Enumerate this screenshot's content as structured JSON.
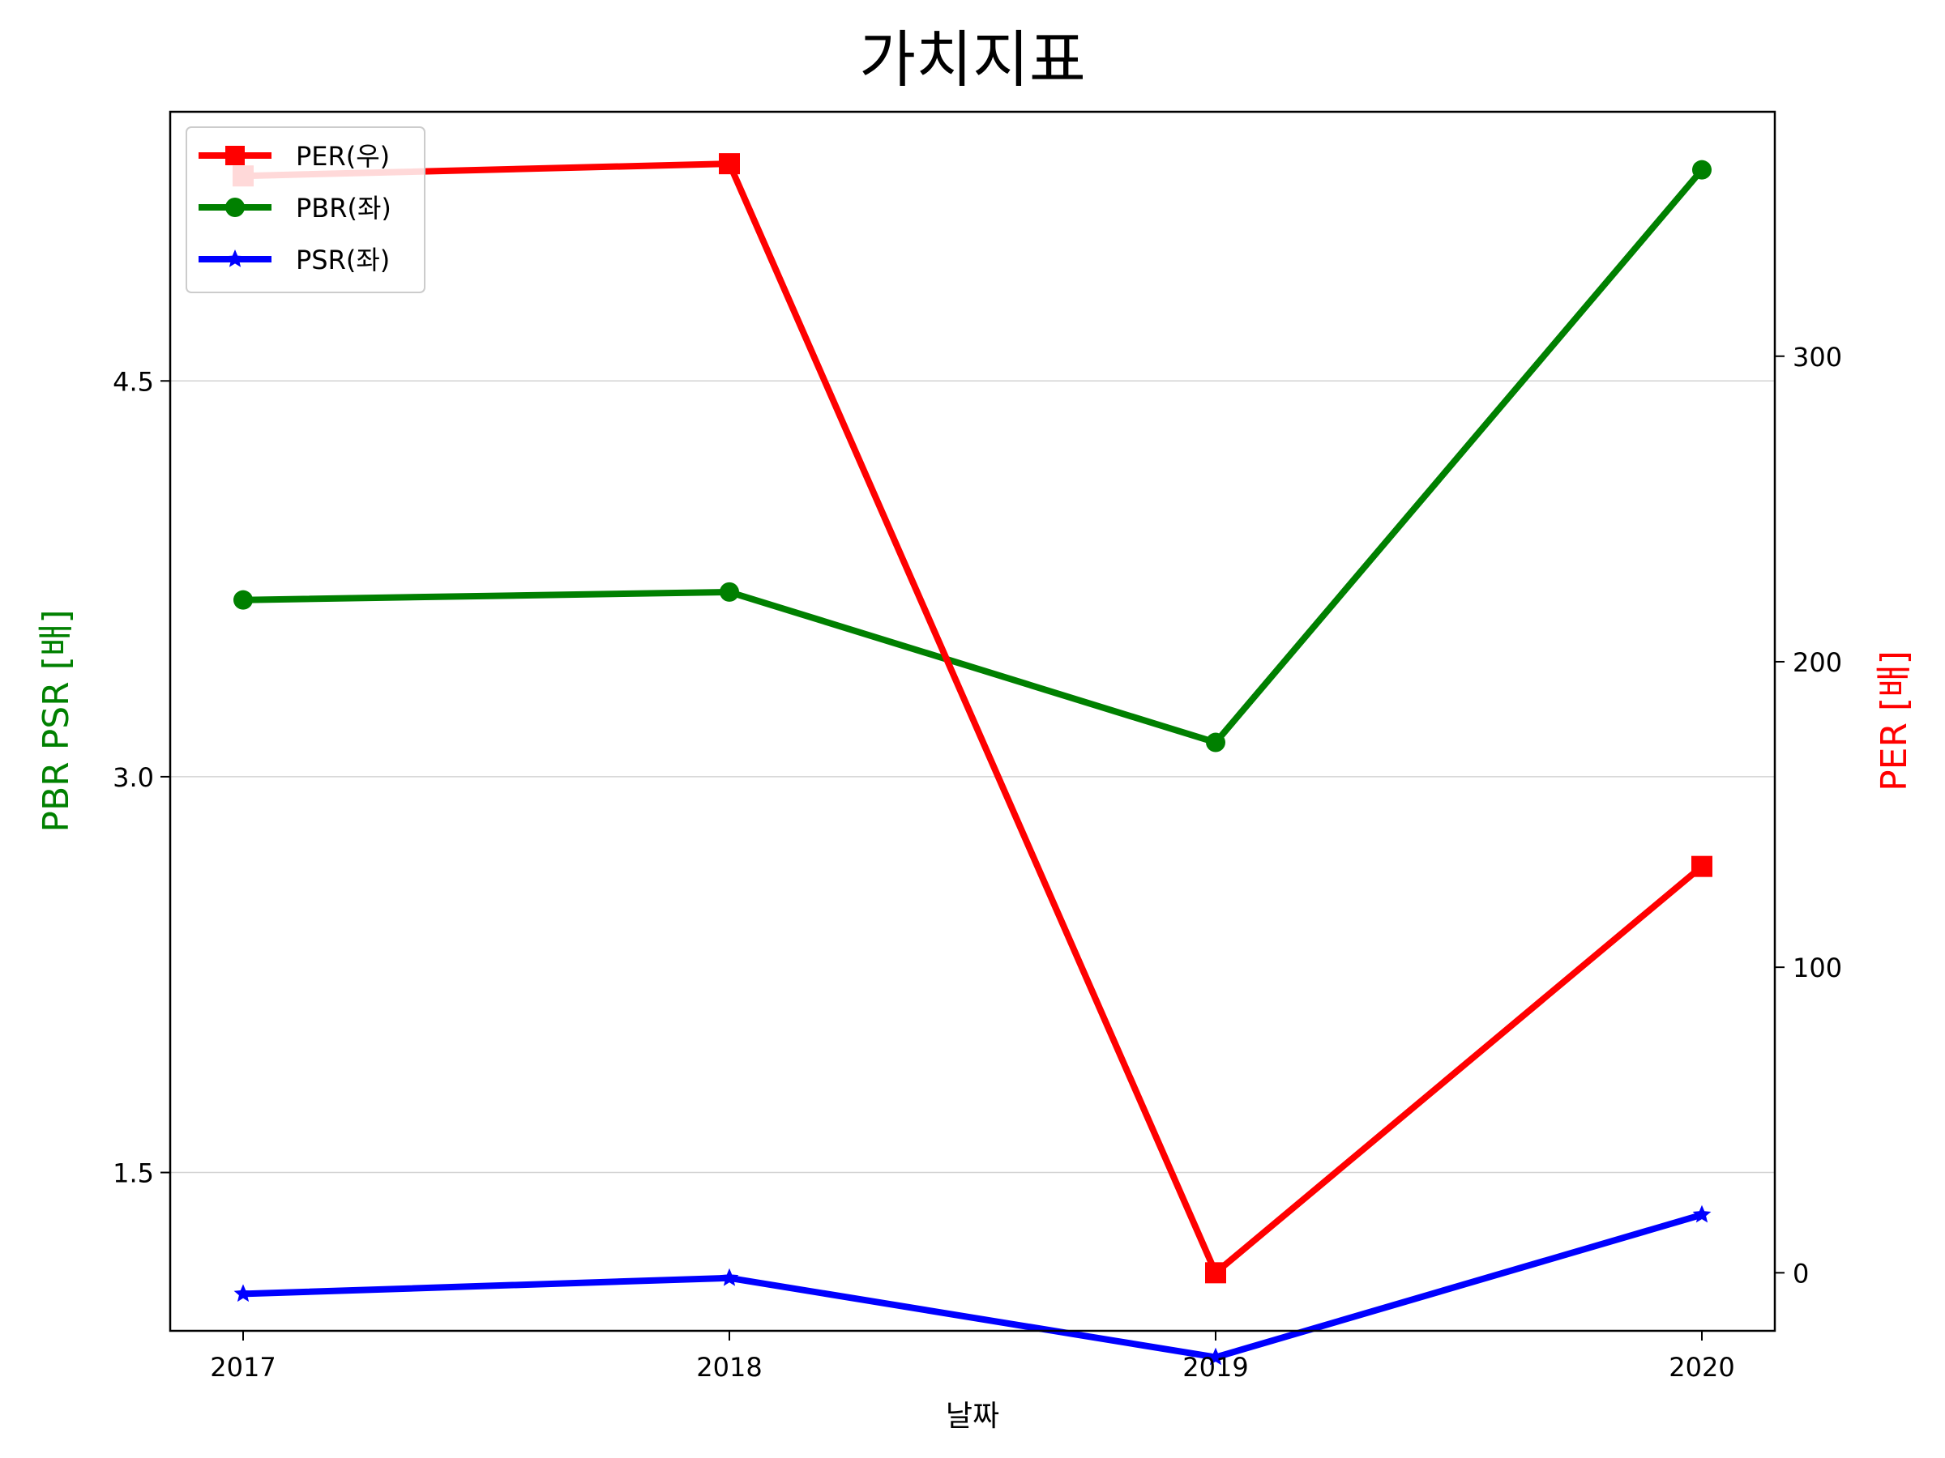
{
  "chart_data": {
    "type": "line",
    "title": "가치지표",
    "xlabel": "날짜",
    "ylabel_left": "PBR PSR [배]",
    "ylabel_right": "PER [배]",
    "colors": {
      "left_label": "#008000",
      "right_label": "#ff0000",
      "grid": "#d3d3d3",
      "axis": "#000000"
    },
    "categories": [
      "2017",
      "2018",
      "2019",
      "2020"
    ],
    "y_left": {
      "ylim": [
        0.9,
        5.52
      ],
      "ticks": [
        1.5,
        3.0,
        4.5
      ],
      "tick_labels": [
        "1.5",
        "3.0",
        "4.5"
      ]
    },
    "y_right": {
      "ylim": [
        -19,
        380
      ],
      "ticks": [
        0,
        100,
        200,
        300
      ],
      "tick_labels": [
        "0",
        "100",
        "200",
        "300"
      ]
    },
    "grid": "horizontal, left axis ticks",
    "legend_position": "top-left",
    "series": [
      {
        "name": "PER(우)",
        "axis": "right",
        "color": "#ff0000",
        "marker": "square",
        "values": [
          359,
          363,
          0,
          133
        ]
      },
      {
        "name": "PBR(좌)",
        "axis": "left",
        "color": "#008000",
        "marker": "circle",
        "values": [
          3.67,
          3.7,
          3.13,
          5.3
        ]
      },
      {
        "name": "PSR(좌)",
        "axis": "left",
        "color": "#0000ff",
        "marker": "star",
        "values": [
          1.04,
          1.1,
          0.8,
          1.34
        ]
      }
    ]
  }
}
